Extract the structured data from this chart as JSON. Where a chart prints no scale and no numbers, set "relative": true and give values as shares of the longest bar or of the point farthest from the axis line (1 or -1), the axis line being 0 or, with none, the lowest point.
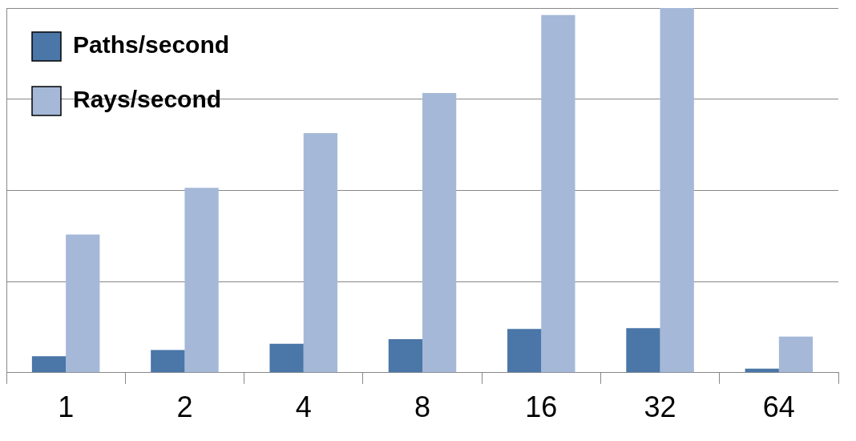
{
  "chart_data": {
    "type": "bar",
    "relative": true,
    "categories": [
      "1",
      "2",
      "4",
      "8",
      "16",
      "32",
      "64"
    ],
    "series": [
      {
        "name": "Paths/second",
        "color": "#4a76a8",
        "values": [
          0.045,
          0.062,
          0.079,
          0.092,
          0.12,
          0.122,
          0.011
        ]
      },
      {
        "name": "Rays/second",
        "color": "#a5b8d8",
        "values": [
          0.379,
          0.507,
          0.657,
          0.767,
          0.981,
          1.0,
          0.099
        ]
      }
    ],
    "grid": "y",
    "legend": "top left",
    "tick_labels": "x"
  }
}
